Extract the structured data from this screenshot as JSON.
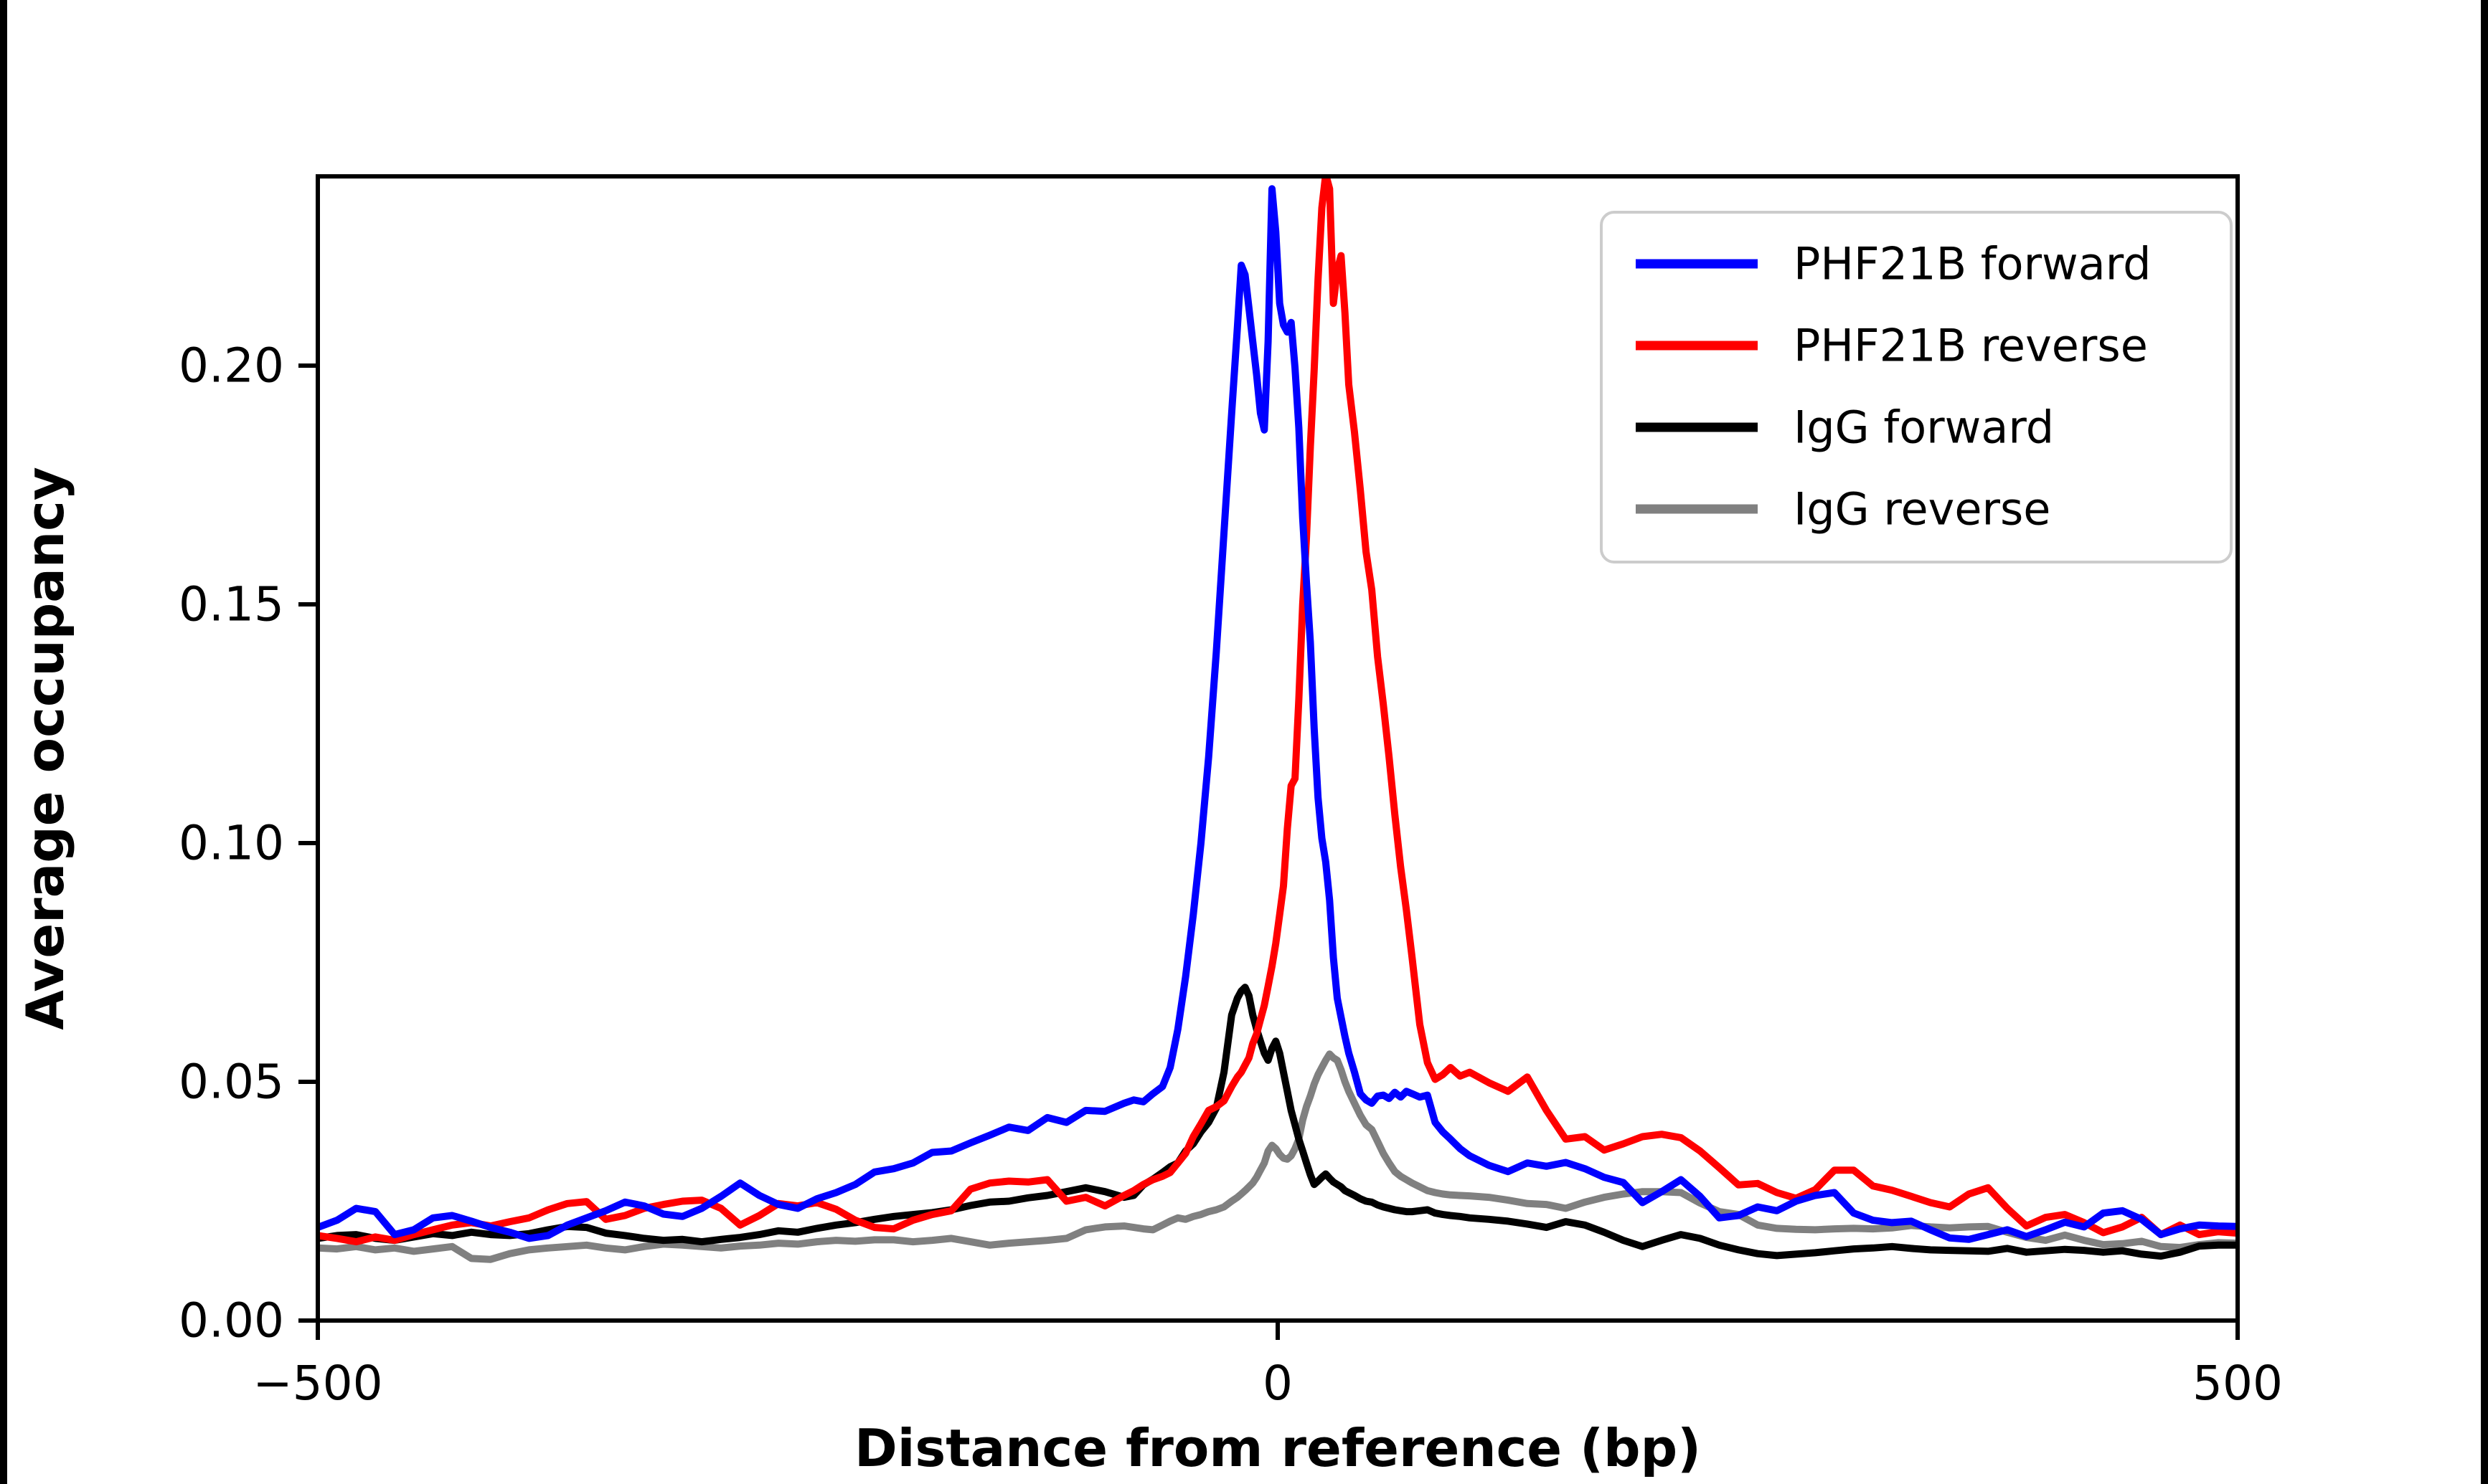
{
  "figure": {
    "background_color": "#ffffff",
    "side_border_color": "#000000",
    "plot_border_color": "#000000",
    "legend_border_color": "#cccccc"
  },
  "chart_data": {
    "type": "line",
    "title": "",
    "xlabel": "Distance from reference (bp)",
    "ylabel": "Average occupancy",
    "xlim": [
      -500,
      500
    ],
    "ylim": [
      0,
      0.2396
    ],
    "xticks": [
      -500,
      0,
      500
    ],
    "xtick_labels": [
      "−500",
      "0",
      "500"
    ],
    "yticks": [
      0.0,
      0.05,
      0.1,
      0.15,
      0.2
    ],
    "ytick_labels": [
      "0.00",
      "0.05",
      "0.10",
      "0.15",
      "0.20"
    ],
    "grid": false,
    "legend_position": "upper right",
    "x": [
      -500,
      -490,
      -480,
      -470,
      -460,
      -450,
      -440,
      -430,
      -420,
      -410,
      -400,
      -390,
      -380,
      -370,
      -360,
      -350,
      -340,
      -330,
      -320,
      -310,
      -300,
      -290,
      -280,
      -270,
      -260,
      -250,
      -240,
      -230,
      -220,
      -210,
      -200,
      -190,
      -180,
      -170,
      -160,
      -150,
      -140,
      -130,
      -120,
      -110,
      -100,
      -90,
      -80,
      -75,
      -70,
      -65,
      -60,
      -56,
      -52,
      -48,
      -44,
      -40,
      -36,
      -32,
      -28,
      -24,
      -21,
      -19,
      -17,
      -15,
      -13,
      -11,
      -9,
      -7,
      -5,
      -3,
      -1,
      1,
      3,
      5,
      7,
      9,
      11,
      13,
      15,
      17,
      19,
      21,
      23,
      25,
      27,
      29,
      31,
      33,
      35,
      37,
      40,
      43,
      46,
      49,
      52,
      55,
      58,
      61,
      64,
      67,
      70,
      74,
      78,
      82,
      86,
      90,
      95,
      100,
      110,
      120,
      130,
      140,
      150,
      160,
      170,
      180,
      190,
      200,
      210,
      220,
      230,
      240,
      250,
      260,
      270,
      280,
      290,
      300,
      310,
      320,
      330,
      340,
      350,
      360,
      370,
      380,
      390,
      400,
      410,
      420,
      430,
      440,
      450,
      460,
      470,
      480,
      490,
      500
    ],
    "series": [
      {
        "name": "PHF21B forward",
        "color": "#0000ff",
        "values": [
          0.0195,
          0.021,
          0.0235,
          0.0228,
          0.018,
          0.019,
          0.0215,
          0.022,
          0.0208,
          0.0195,
          0.0185,
          0.0172,
          0.0178,
          0.02,
          0.0215,
          0.023,
          0.0248,
          0.024,
          0.0223,
          0.0218,
          0.0235,
          0.026,
          0.0288,
          0.0262,
          0.0243,
          0.0235,
          0.0255,
          0.0268,
          0.0285,
          0.0311,
          0.0318,
          0.033,
          0.0352,
          0.0355,
          0.0372,
          0.0388,
          0.0405,
          0.0398,
          0.0425,
          0.0415,
          0.044,
          0.0438,
          0.0455,
          0.0462,
          0.0458,
          0.0475,
          0.049,
          0.053,
          0.061,
          0.072,
          0.085,
          0.1,
          0.118,
          0.14,
          0.165,
          0.19,
          0.208,
          0.221,
          0.219,
          0.212,
          0.205,
          0.198,
          0.19,
          0.1865,
          0.205,
          0.237,
          0.228,
          0.213,
          0.2085,
          0.207,
          0.209,
          0.1995,
          0.187,
          0.168,
          0.1545,
          0.142,
          0.124,
          0.1095,
          0.101,
          0.096,
          0.088,
          0.076,
          0.0675,
          0.0635,
          0.0595,
          0.056,
          0.052,
          0.0475,
          0.0462,
          0.0455,
          0.047,
          0.0472,
          0.0465,
          0.0478,
          0.0468,
          0.048,
          0.0475,
          0.0468,
          0.0472,
          0.0415,
          0.0395,
          0.038,
          0.036,
          0.0345,
          0.0325,
          0.0312,
          0.033,
          0.0323,
          0.0331,
          0.0318,
          0.03,
          0.0289,
          0.0247,
          0.027,
          0.0295,
          0.026,
          0.0215,
          0.022,
          0.0238,
          0.023,
          0.025,
          0.0262,
          0.0268,
          0.0225,
          0.021,
          0.0205,
          0.0208,
          0.019,
          0.0173,
          0.017,
          0.018,
          0.019,
          0.0176,
          0.019,
          0.0206,
          0.0196,
          0.0225,
          0.023,
          0.0212,
          0.018,
          0.0192,
          0.02,
          0.0198,
          0.0197
        ]
      },
      {
        "name": "PHF21B reverse",
        "color": "#ff0000",
        "values": [
          0.0178,
          0.0172,
          0.0165,
          0.0175,
          0.0168,
          0.018,
          0.019,
          0.02,
          0.0205,
          0.0198,
          0.0207,
          0.0215,
          0.0232,
          0.0245,
          0.0249,
          0.0212,
          0.022,
          0.0235,
          0.0243,
          0.025,
          0.0252,
          0.0235,
          0.02,
          0.022,
          0.0245,
          0.024,
          0.0247,
          0.0233,
          0.021,
          0.0195,
          0.0192,
          0.021,
          0.0222,
          0.023,
          0.0275,
          0.0288,
          0.0292,
          0.029,
          0.0295,
          0.025,
          0.0258,
          0.024,
          0.0262,
          0.0272,
          0.0285,
          0.0295,
          0.0302,
          0.031,
          0.033,
          0.035,
          0.0385,
          0.0412,
          0.044,
          0.0448,
          0.046,
          0.049,
          0.051,
          0.052,
          0.0535,
          0.055,
          0.058,
          0.06,
          0.063,
          0.066,
          0.07,
          0.0742,
          0.079,
          0.085,
          0.091,
          0.103,
          0.112,
          0.1135,
          0.13,
          0.15,
          0.164,
          0.183,
          0.199,
          0.218,
          0.233,
          0.24,
          0.237,
          0.213,
          0.22,
          0.223,
          0.211,
          0.196,
          0.186,
          0.174,
          0.161,
          0.153,
          0.139,
          0.129,
          0.118,
          0.106,
          0.095,
          0.086,
          0.076,
          0.062,
          0.054,
          0.0505,
          0.0515,
          0.053,
          0.0512,
          0.052,
          0.0498,
          0.048,
          0.051,
          0.044,
          0.038,
          0.0385,
          0.0357,
          0.037,
          0.0385,
          0.039,
          0.0383,
          0.0355,
          0.032,
          0.0284,
          0.0287,
          0.0268,
          0.0256,
          0.0274,
          0.0315,
          0.0315,
          0.0282,
          0.0273,
          0.026,
          0.0247,
          0.0238,
          0.0265,
          0.0278,
          0.0235,
          0.0198,
          0.0216,
          0.0222,
          0.0205,
          0.0184,
          0.0196,
          0.0216,
          0.018,
          0.02,
          0.018,
          0.0186,
          0.0183
        ]
      },
      {
        "name": "IgG forward",
        "color": "#000000",
        "values": [
          0.0172,
          0.0178,
          0.018,
          0.0172,
          0.0168,
          0.0175,
          0.0182,
          0.0178,
          0.0185,
          0.018,
          0.0178,
          0.0182,
          0.019,
          0.0197,
          0.0195,
          0.0183,
          0.0178,
          0.0172,
          0.0168,
          0.017,
          0.0165,
          0.017,
          0.0174,
          0.018,
          0.0188,
          0.0185,
          0.0193,
          0.02,
          0.0205,
          0.0212,
          0.0218,
          0.0222,
          0.0226,
          0.0232,
          0.0241,
          0.0248,
          0.025,
          0.0257,
          0.0262,
          0.027,
          0.0278,
          0.027,
          0.0258,
          0.0262,
          0.0284,
          0.0296,
          0.031,
          0.0322,
          0.033,
          0.0355,
          0.037,
          0.0395,
          0.0415,
          0.0445,
          0.052,
          0.064,
          0.0675,
          0.069,
          0.0698,
          0.068,
          0.064,
          0.061,
          0.0585,
          0.056,
          0.0545,
          0.057,
          0.0585,
          0.056,
          0.052,
          0.048,
          0.044,
          0.041,
          0.038,
          0.0355,
          0.033,
          0.0305,
          0.0285,
          0.0292,
          0.03,
          0.0307,
          0.0298,
          0.029,
          0.0285,
          0.028,
          0.0272,
          0.0268,
          0.0262,
          0.0255,
          0.025,
          0.0248,
          0.0242,
          0.0238,
          0.0235,
          0.0232,
          0.023,
          0.0228,
          0.0228,
          0.023,
          0.0232,
          0.0225,
          0.0222,
          0.022,
          0.0218,
          0.0215,
          0.0212,
          0.0208,
          0.0202,
          0.0195,
          0.0207,
          0.02,
          0.0185,
          0.0168,
          0.0155,
          0.0168,
          0.018,
          0.0172,
          0.0158,
          0.0148,
          0.014,
          0.0136,
          0.0139,
          0.0142,
          0.0146,
          0.015,
          0.0152,
          0.0155,
          0.0151,
          0.0148,
          0.0147,
          0.0146,
          0.0145,
          0.0151,
          0.0143,
          0.0146,
          0.0149,
          0.0147,
          0.0143,
          0.0146,
          0.0139,
          0.0135,
          0.0143,
          0.0156,
          0.0158,
          0.0158
        ]
      },
      {
        "name": "IgG reverse",
        "color": "#808080",
        "values": [
          0.0152,
          0.015,
          0.0155,
          0.0148,
          0.0152,
          0.0145,
          0.015,
          0.0155,
          0.013,
          0.0128,
          0.014,
          0.0148,
          0.0152,
          0.0155,
          0.0158,
          0.0152,
          0.0148,
          0.0155,
          0.016,
          0.0158,
          0.0155,
          0.0152,
          0.0156,
          0.0158,
          0.0162,
          0.016,
          0.0165,
          0.0168,
          0.0166,
          0.0169,
          0.0169,
          0.0165,
          0.0168,
          0.0172,
          0.0165,
          0.0158,
          0.0162,
          0.0165,
          0.0168,
          0.0172,
          0.019,
          0.0196,
          0.0198,
          0.0195,
          0.0192,
          0.019,
          0.02,
          0.0208,
          0.0215,
          0.0212,
          0.0218,
          0.0222,
          0.0228,
          0.0232,
          0.0238,
          0.025,
          0.0258,
          0.0265,
          0.0272,
          0.028,
          0.0288,
          0.03,
          0.0315,
          0.033,
          0.0355,
          0.0367,
          0.036,
          0.0348,
          0.034,
          0.0338,
          0.0345,
          0.036,
          0.038,
          0.042,
          0.0448,
          0.047,
          0.0495,
          0.0515,
          0.053,
          0.0545,
          0.0558,
          0.055,
          0.0545,
          0.0525,
          0.05,
          0.048,
          0.0455,
          0.043,
          0.041,
          0.04,
          0.0375,
          0.035,
          0.033,
          0.0312,
          0.0302,
          0.0295,
          0.0288,
          0.028,
          0.0272,
          0.0268,
          0.0265,
          0.0263,
          0.0262,
          0.0261,
          0.0258,
          0.0252,
          0.0245,
          0.0243,
          0.0235,
          0.0248,
          0.0258,
          0.0265,
          0.027,
          0.027,
          0.0268,
          0.0246,
          0.0228,
          0.0222,
          0.02,
          0.0193,
          0.0191,
          0.019,
          0.0192,
          0.0193,
          0.0192,
          0.0194,
          0.0199,
          0.0196,
          0.0194,
          0.0196,
          0.0197,
          0.0185,
          0.0174,
          0.0168,
          0.0179,
          0.0168,
          0.0159,
          0.0161,
          0.0166,
          0.0155,
          0.0153,
          0.0159,
          0.0163,
          0.0162
        ]
      }
    ]
  }
}
